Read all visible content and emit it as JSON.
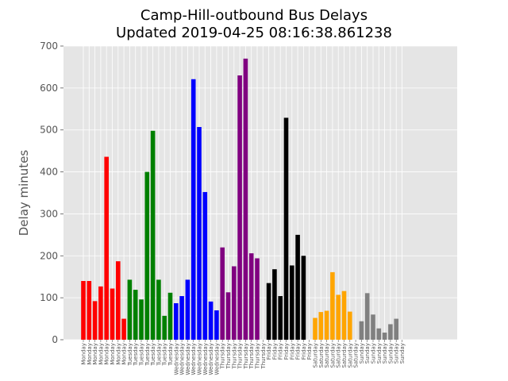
{
  "chart_data": {
    "type": "bar",
    "title": "Camp-Hill-outbound Bus Delays",
    "subtitle": "Updated 2019-04-25 08:16:38.861238",
    "xlabel": "",
    "ylabel": "Delay minutes",
    "ylim": [
      0,
      700
    ],
    "yticks": [
      0,
      100,
      200,
      300,
      400,
      500,
      600,
      700
    ],
    "grid": true,
    "groups": [
      {
        "label": "Monday",
        "color": "#ff0000",
        "values": [
          140,
          140,
          92,
          127,
          436,
          122,
          187,
          50
        ]
      },
      {
        "label": "Tuesday",
        "color": "#008000",
        "values": [
          143,
          119,
          96,
          400,
          498,
          143,
          57,
          112
        ]
      },
      {
        "label": "Wednesday",
        "color": "#0000ff",
        "values": [
          87,
          104,
          143,
          621,
          507,
          352,
          91,
          70
        ]
      },
      {
        "label": "Thursday",
        "color": "#800080",
        "values": [
          220,
          113,
          175,
          630,
          670,
          206,
          194,
          0
        ]
      },
      {
        "label": "Friday",
        "color": "#000000",
        "values": [
          135,
          168,
          104,
          529,
          177,
          250,
          200,
          0
        ]
      },
      {
        "label": "Saturday",
        "color": "#ffa500",
        "values": [
          52,
          66,
          69,
          161,
          107,
          116,
          67,
          0
        ]
      },
      {
        "label": "Sunday",
        "color": "#808080",
        "values": [
          44,
          111,
          60,
          27,
          17,
          37,
          50,
          0
        ]
      }
    ]
  }
}
